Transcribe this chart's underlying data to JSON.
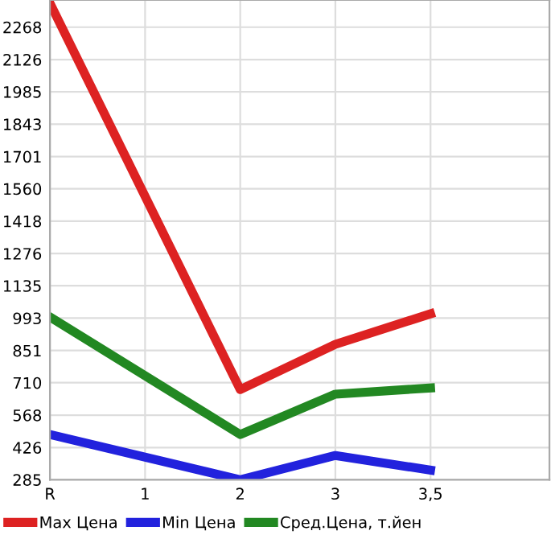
{
  "chart_data": {
    "type": "line",
    "categories": [
      "R",
      "1",
      "2",
      "3",
      "3,5"
    ],
    "series": [
      {
        "name": "Max Цена",
        "color": "#dd2222",
        "values": [
          2373,
          null,
          680,
          878,
          1012
        ]
      },
      {
        "name": "Min Цена",
        "color": "#2222dd",
        "values": [
          483,
          null,
          285,
          391,
          327
        ]
      },
      {
        "name": "Сред.Цена, т.йен",
        "color": "#228822",
        "values": [
          998,
          null,
          483,
          660,
          687
        ]
      }
    ],
    "ylim": [
      285,
      2387
    ],
    "yticks": [
      285,
      426,
      568,
      710,
      851,
      993,
      1135,
      1276,
      1418,
      1560,
      1701,
      1843,
      1985,
      2126,
      2268
    ],
    "grid": true,
    "legend": "bottom",
    "marker": "none",
    "line_style": "solid"
  }
}
